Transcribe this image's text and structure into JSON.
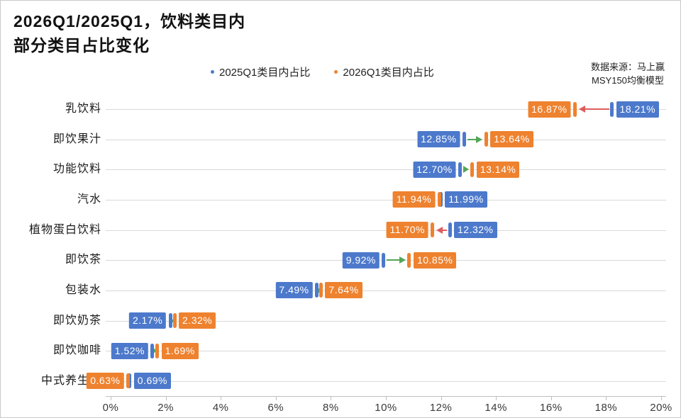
{
  "header": {
    "title_line1": "2026Q1/2025Q1，饮料类目内",
    "title_line2": "部分类目占比变化"
  },
  "source": {
    "line1": "数据来源：马上赢",
    "line2": "MSY150均衡模型"
  },
  "chart_data": {
    "type": "scatter",
    "variant": "dumbbell-dot-plot-with-change-arrows",
    "title": "2026Q1/2025Q1，饮料类目内部分类目占比变化",
    "categories": [
      "乳饮料",
      "即饮果汁",
      "功能饮料",
      "汽水",
      "植物蛋白饮料",
      "即饮茶",
      "包装水",
      "即饮奶茶",
      "即饮咖啡",
      "中式养生水"
    ],
    "series": [
      {
        "name": "2025Q1类目内占比",
        "color": "#4C79CB",
        "values": [
          18.21,
          12.85,
          12.7,
          11.99,
          12.32,
          9.92,
          7.49,
          2.17,
          1.52,
          0.69
        ]
      },
      {
        "name": "2026Q1类目内占比",
        "color": "#EE822F",
        "values": [
          16.87,
          13.64,
          13.14,
          11.94,
          11.7,
          10.85,
          7.64,
          2.32,
          1.69,
          0.63
        ]
      }
    ],
    "value_label_format": "{value}%",
    "x_axis": {
      "min": 0,
      "max": 20,
      "tick_step": 2,
      "tick_labels": [
        "0%",
        "2%",
        "4%",
        "6%",
        "8%",
        "10%",
        "12%",
        "14%",
        "16%",
        "18%",
        "20%"
      ]
    },
    "arrow_colors": {
      "increase": "#53A558",
      "decrease": "#DF5C5C"
    },
    "grid": "horizontal-category-lines",
    "legend_position": "top-center",
    "colors": {
      "gridline": "#d9d9d9",
      "axis": "#bfbfbf"
    }
  }
}
